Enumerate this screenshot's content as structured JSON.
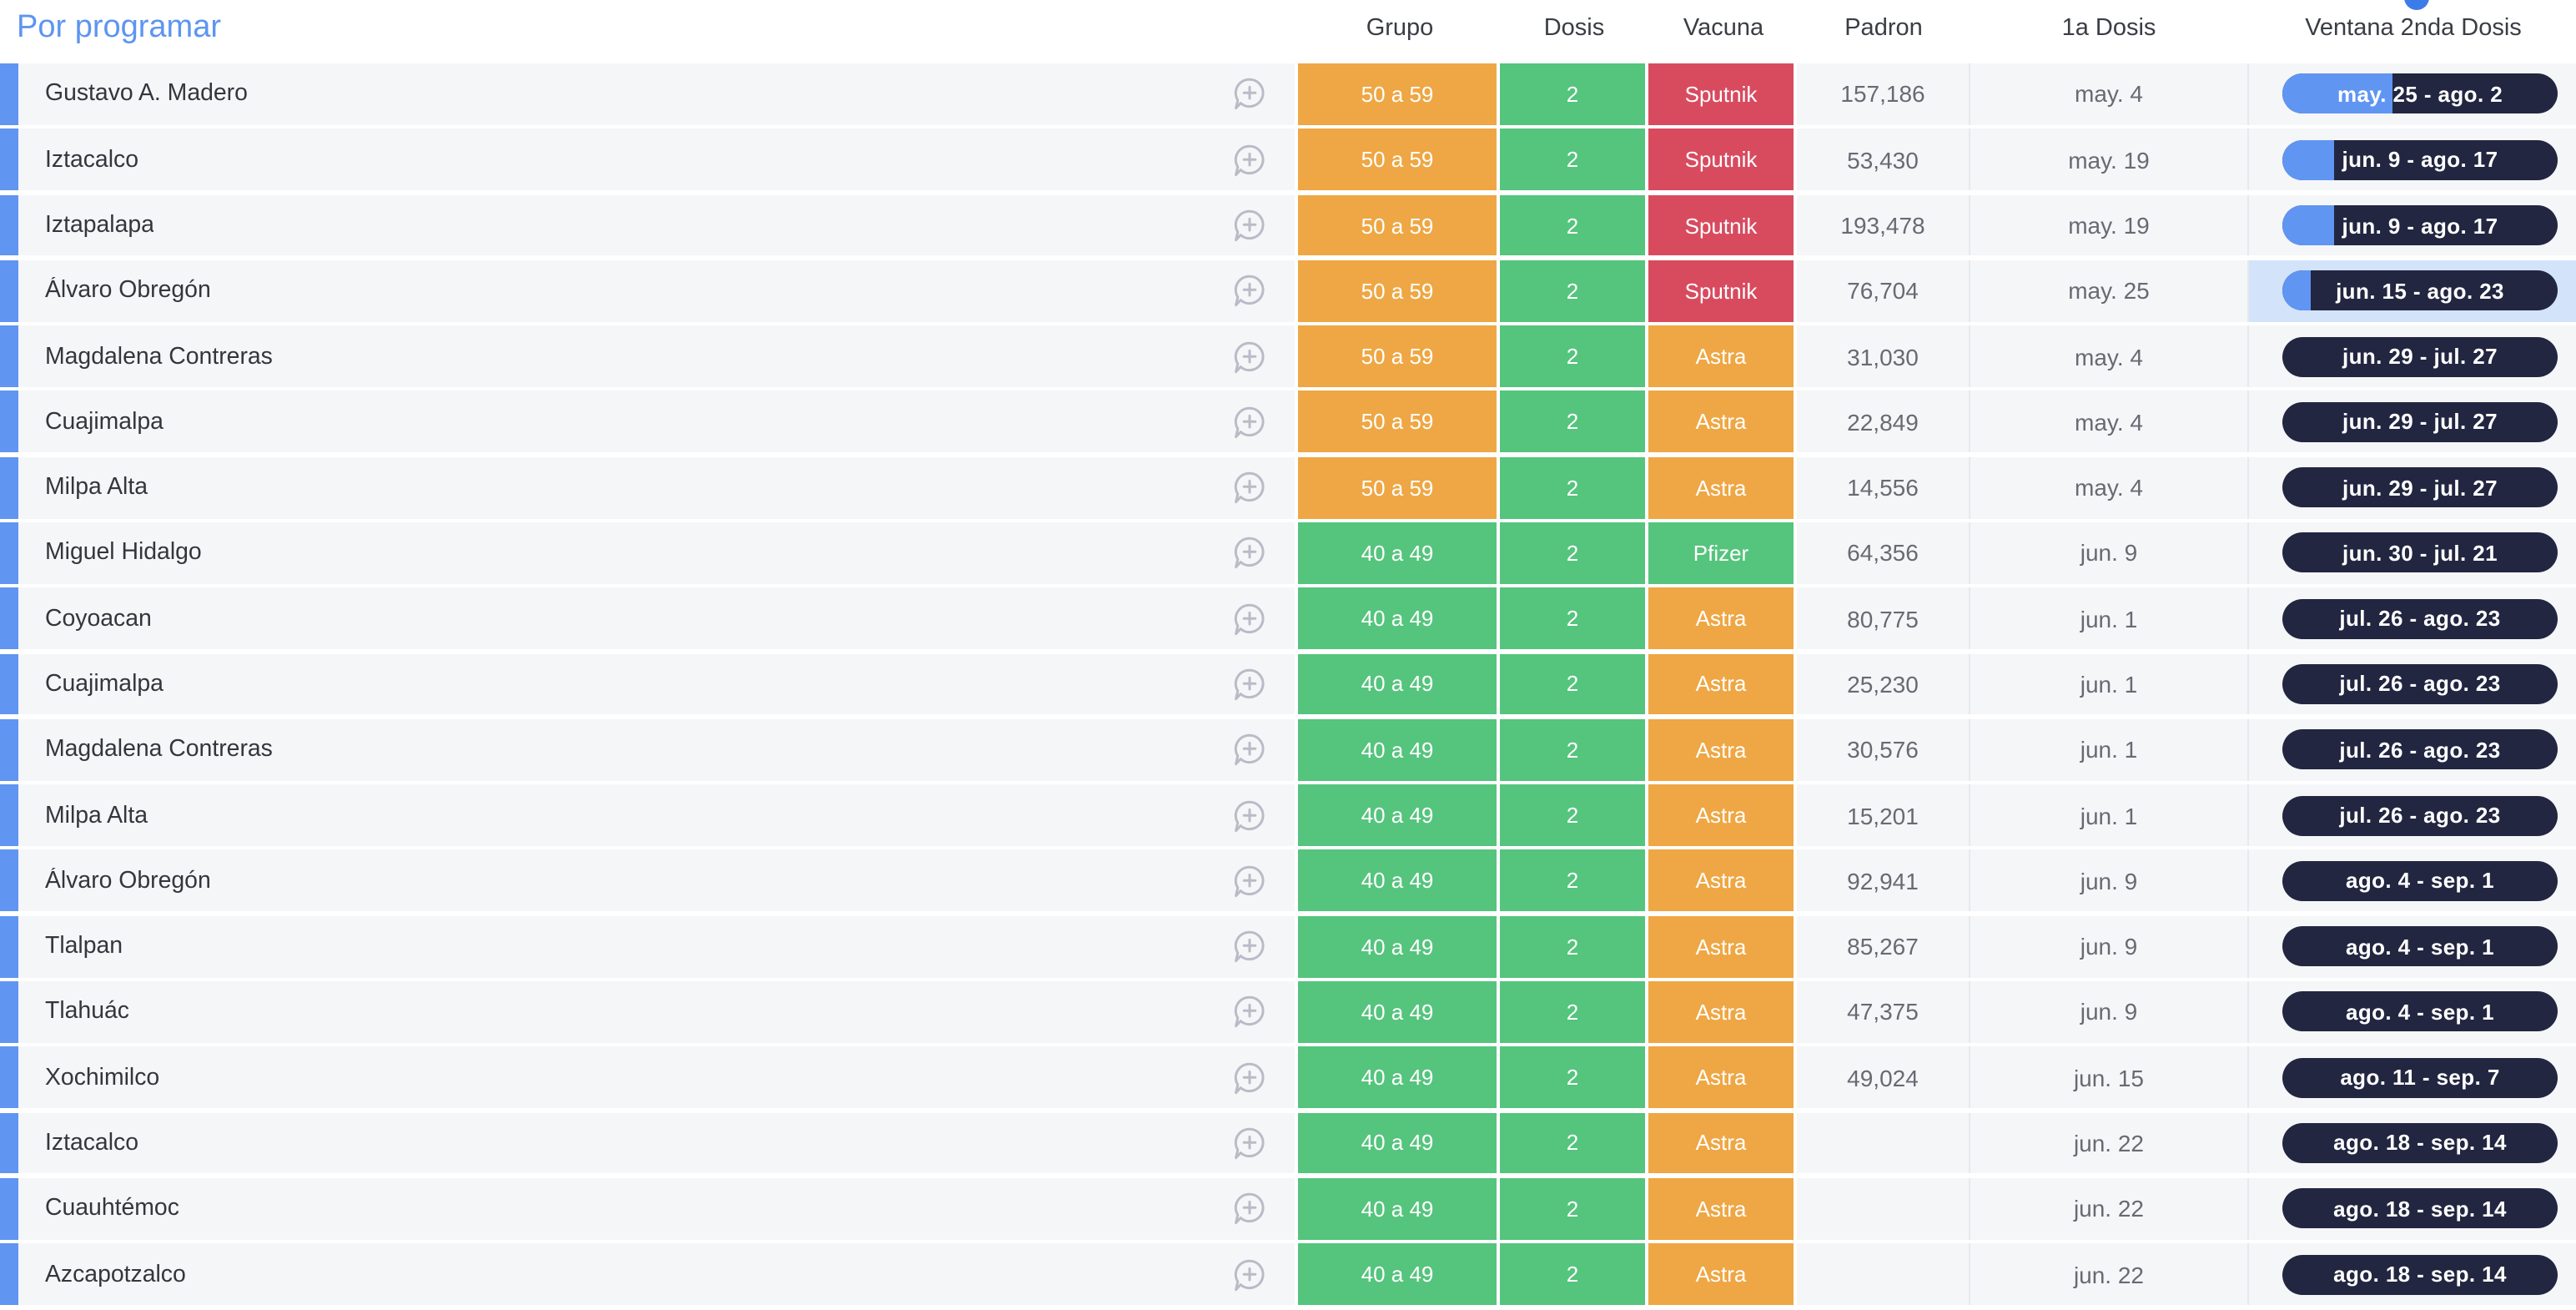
{
  "group": {
    "title": "Por programar"
  },
  "columns": [
    {
      "label": "Grupo"
    },
    {
      "label": "Dosis"
    },
    {
      "label": "Vacuna"
    },
    {
      "label": "Padron"
    },
    {
      "label": "1a Dosis"
    },
    {
      "label": "Ventana 2nda Dosis"
    }
  ],
  "colors": {
    "blue": "#6095f2",
    "orange": "#eea744",
    "green": "#55c47d",
    "red": "#d84b5f",
    "dark": "#222640",
    "highlight": "#d3e4fa",
    "group_title": "#5d95f0",
    "header_dot": "#3b7ce8"
  },
  "rows": [
    {
      "name": "Gustavo A. Madero",
      "grupo": "50 a 59",
      "grupo_color": "orange",
      "dosis": "2",
      "vacuna": "Sputnik",
      "vacuna_color": "red",
      "padron": "157,186",
      "primera_dosis": "may. 4",
      "ventana": "may. 25 - ago. 2",
      "progress_pct": 40,
      "highlight": false
    },
    {
      "name": "Iztacalco",
      "grupo": "50 a 59",
      "grupo_color": "orange",
      "dosis": "2",
      "vacuna": "Sputnik",
      "vacuna_color": "red",
      "padron": "53,430",
      "primera_dosis": "may. 19",
      "ventana": "jun. 9 - ago. 17",
      "progress_pct": 19,
      "highlight": false
    },
    {
      "name": "Iztapalapa",
      "grupo": "50 a 59",
      "grupo_color": "orange",
      "dosis": "2",
      "vacuna": "Sputnik",
      "vacuna_color": "red",
      "padron": "193,478",
      "primera_dosis": "may. 19",
      "ventana": "jun. 9 - ago. 17",
      "progress_pct": 19,
      "highlight": false
    },
    {
      "name": "Álvaro Obregón",
      "grupo": "50 a 59",
      "grupo_color": "orange",
      "dosis": "2",
      "vacuna": "Sputnik",
      "vacuna_color": "red",
      "padron": "76,704",
      "primera_dosis": "may. 25",
      "ventana": "jun. 15 - ago. 23",
      "progress_pct": 10,
      "highlight": true
    },
    {
      "name": "Magdalena Contreras",
      "grupo": "50 a 59",
      "grupo_color": "orange",
      "dosis": "2",
      "vacuna": "Astra",
      "vacuna_color": "orange",
      "padron": "31,030",
      "primera_dosis": "may. 4",
      "ventana": "jun. 29 - jul. 27",
      "progress_pct": 0,
      "highlight": false
    },
    {
      "name": "Cuajimalpa",
      "grupo": "50 a 59",
      "grupo_color": "orange",
      "dosis": "2",
      "vacuna": "Astra",
      "vacuna_color": "orange",
      "padron": "22,849",
      "primera_dosis": "may. 4",
      "ventana": "jun. 29 - jul. 27",
      "progress_pct": 0,
      "highlight": false
    },
    {
      "name": "Milpa Alta",
      "grupo": "50 a 59",
      "grupo_color": "orange",
      "dosis": "2",
      "vacuna": "Astra",
      "vacuna_color": "orange",
      "padron": "14,556",
      "primera_dosis": "may. 4",
      "ventana": "jun. 29 - jul. 27",
      "progress_pct": 0,
      "highlight": false
    },
    {
      "name": "Miguel Hidalgo",
      "grupo": "40 a 49",
      "grupo_color": "green",
      "dosis": "2",
      "vacuna": "Pfizer",
      "vacuna_color": "green",
      "padron": "64,356",
      "primera_dosis": "jun. 9",
      "ventana": "jun. 30 - jul. 21",
      "progress_pct": 0,
      "highlight": false
    },
    {
      "name": "Coyoacan",
      "grupo": "40 a 49",
      "grupo_color": "green",
      "dosis": "2",
      "vacuna": "Astra",
      "vacuna_color": "orange",
      "padron": "80,775",
      "primera_dosis": "jun. 1",
      "ventana": "jul. 26 - ago. 23",
      "progress_pct": 0,
      "highlight": false
    },
    {
      "name": "Cuajimalpa",
      "grupo": "40 a 49",
      "grupo_color": "green",
      "dosis": "2",
      "vacuna": "Astra",
      "vacuna_color": "orange",
      "padron": "25,230",
      "primera_dosis": "jun. 1",
      "ventana": "jul. 26 - ago. 23",
      "progress_pct": 0,
      "highlight": false
    },
    {
      "name": "Magdalena Contreras",
      "grupo": "40 a 49",
      "grupo_color": "green",
      "dosis": "2",
      "vacuna": "Astra",
      "vacuna_color": "orange",
      "padron": "30,576",
      "primera_dosis": "jun. 1",
      "ventana": "jul. 26 - ago. 23",
      "progress_pct": 0,
      "highlight": false
    },
    {
      "name": "Milpa Alta",
      "grupo": "40 a 49",
      "grupo_color": "green",
      "dosis": "2",
      "vacuna": "Astra",
      "vacuna_color": "orange",
      "padron": "15,201",
      "primera_dosis": "jun. 1",
      "ventana": "jul. 26 - ago. 23",
      "progress_pct": 0,
      "highlight": false
    },
    {
      "name": "Álvaro Obregón",
      "grupo": "40 a 49",
      "grupo_color": "green",
      "dosis": "2",
      "vacuna": "Astra",
      "vacuna_color": "orange",
      "padron": "92,941",
      "primera_dosis": "jun. 9",
      "ventana": "ago. 4 - sep. 1",
      "progress_pct": 0,
      "highlight": false
    },
    {
      "name": "Tlalpan",
      "grupo": "40 a 49",
      "grupo_color": "green",
      "dosis": "2",
      "vacuna": "Astra",
      "vacuna_color": "orange",
      "padron": "85,267",
      "primera_dosis": "jun. 9",
      "ventana": "ago. 4 - sep. 1",
      "progress_pct": 0,
      "highlight": false
    },
    {
      "name": "Tlahuác",
      "grupo": "40 a 49",
      "grupo_color": "green",
      "dosis": "2",
      "vacuna": "Astra",
      "vacuna_color": "orange",
      "padron": "47,375",
      "primera_dosis": "jun. 9",
      "ventana": "ago. 4 - sep. 1",
      "progress_pct": 0,
      "highlight": false
    },
    {
      "name": "Xochimilco",
      "grupo": "40 a 49",
      "grupo_color": "green",
      "dosis": "2",
      "vacuna": "Astra",
      "vacuna_color": "orange",
      "padron": "49,024",
      "primera_dosis": "jun. 15",
      "ventana": "ago. 11 - sep. 7",
      "progress_pct": 0,
      "highlight": false
    },
    {
      "name": "Iztacalco",
      "grupo": "40 a 49",
      "grupo_color": "green",
      "dosis": "2",
      "vacuna": "Astra",
      "vacuna_color": "orange",
      "padron": "",
      "primera_dosis": "jun. 22",
      "ventana": "ago. 18 - sep. 14",
      "progress_pct": 0,
      "highlight": false
    },
    {
      "name": "Cuauhtémoc",
      "grupo": "40 a 49",
      "grupo_color": "green",
      "dosis": "2",
      "vacuna": "Astra",
      "vacuna_color": "orange",
      "padron": "",
      "primera_dosis": "jun. 22",
      "ventana": "ago. 18 - sep. 14",
      "progress_pct": 0,
      "highlight": false
    },
    {
      "name": "Azcapotzalco",
      "grupo": "40 a 49",
      "grupo_color": "green",
      "dosis": "2",
      "vacuna": "Astra",
      "vacuna_color": "orange",
      "padron": "",
      "primera_dosis": "jun. 22",
      "ventana": "ago. 18 - sep. 14",
      "progress_pct": 0,
      "highlight": false
    }
  ]
}
